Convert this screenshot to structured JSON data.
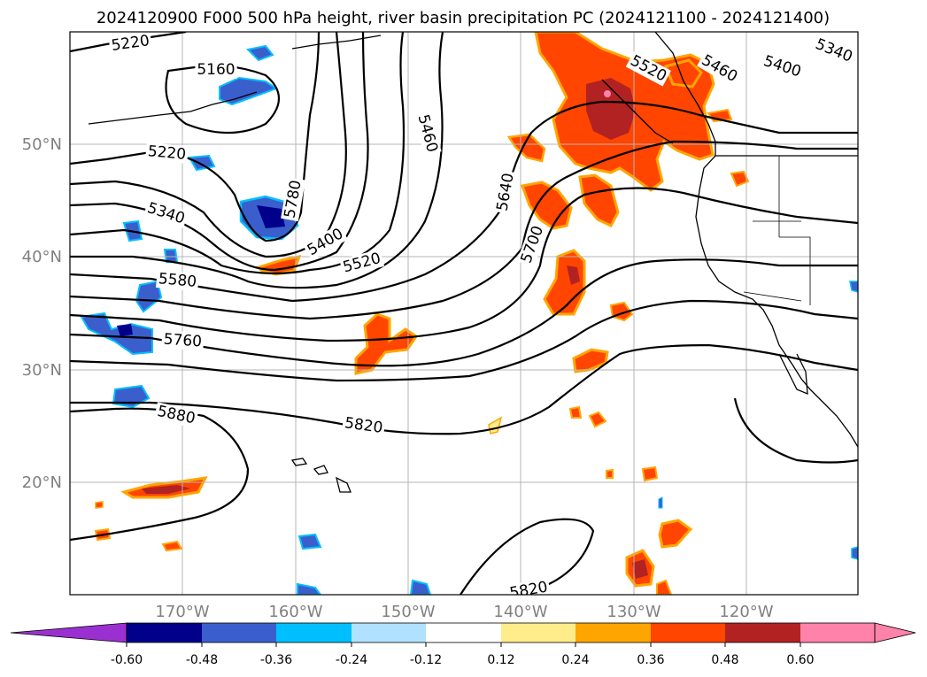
{
  "title": "2024120900 F000 500 hPa height, river basin precipitation PC (2024121100 - 2024121400)",
  "lat_labels": [
    "50°N",
    "40°N",
    "30°N",
    "20°N"
  ],
  "lon_labels": [
    "170°W",
    "160°W",
    "150°W",
    "140°W",
    "130°W",
    "120°W"
  ],
  "contour_labels": [
    "5160",
    "5220",
    "5220",
    "5340",
    "5340",
    "5400",
    "5400",
    "5460",
    "5460",
    "5520",
    "5520",
    "5580",
    "5640",
    "5700",
    "5760",
    "5780",
    "5820",
    "5820",
    "5880"
  ],
  "colorbar": {
    "ticks": [
      "-0.60",
      "-0.48",
      "-0.36",
      "-0.24",
      "-0.12",
      "0.12",
      "0.24",
      "0.36",
      "0.48",
      "0.60"
    ],
    "colors": [
      "#9b30d0",
      "#00008b",
      "#3a5fcd",
      "#00bfff",
      "#b0e2ff",
      "#ffffff",
      "#ffec8b",
      "#ffa500",
      "#ff4500",
      "#b22222",
      "#ff82ab"
    ]
  }
}
